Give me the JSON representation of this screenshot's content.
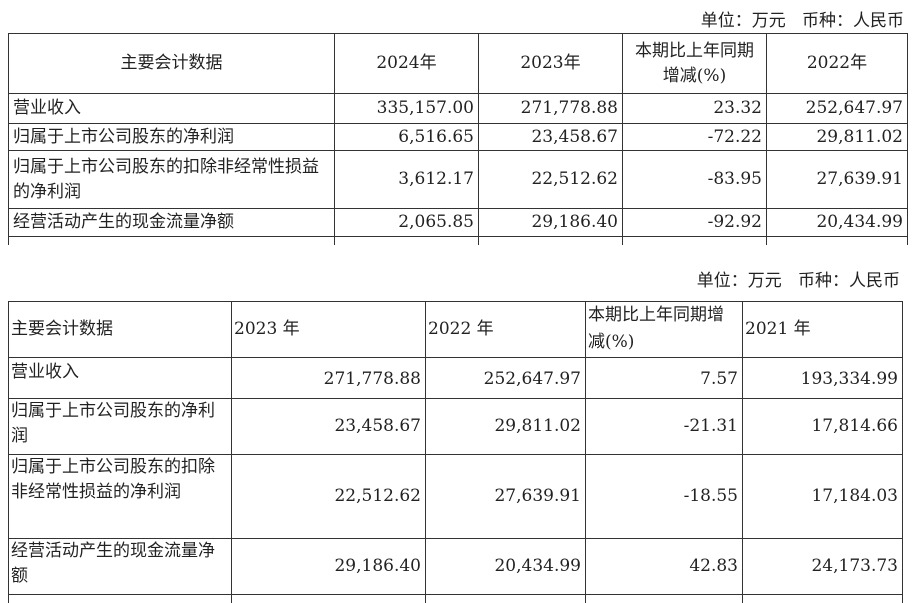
{
  "table_2024": {
    "unit_note": "单位：万元   币种：人民币",
    "headers": [
      "主要会计数据",
      "2024年",
      "2023年",
      "本期比上年同期增减(%)",
      "2022年"
    ],
    "rows": [
      [
        "营业收入",
        "335,157.00",
        "271,778.88",
        "23.32",
        "252,647.97"
      ],
      [
        "归属于上市公司股东的净利润",
        "6,516.65",
        "23,458.67",
        "-72.22",
        "29,811.02"
      ],
      [
        "归属于上市公司股东的扣除非经常性损益的净利润",
        "3,612.17",
        "22,512.62",
        "-83.95",
        "27,639.91"
      ],
      [
        "经营活动产生的现金流量净额",
        "2,065.85",
        "29,186.40",
        "-92.92",
        "20,434.99"
      ]
    ]
  },
  "table_2023": {
    "unit_note": "单位：万元   币种：人民币",
    "headers": [
      "主要会计数据",
      "2023 年",
      "2022 年",
      "本期比上年同期增减(%)",
      "2021 年"
    ],
    "rows": [
      [
        "营业收入",
        "271,778.88",
        "252,647.97",
        "7.57",
        "193,334.99"
      ],
      [
        "归属于上市公司股东的净利润",
        "23,458.67",
        "29,811.02",
        "-21.31",
        "17,814.66"
      ],
      [
        "归属于上市公司股东的扣除非经常性损益的净利润",
        "22,512.62",
        "27,639.91",
        "-18.55",
        "17,184.03"
      ],
      [
        "经营活动产生的现金流量净额",
        "29,186.40",
        "20,434.99",
        "42.83",
        "24,173.73"
      ]
    ]
  }
}
